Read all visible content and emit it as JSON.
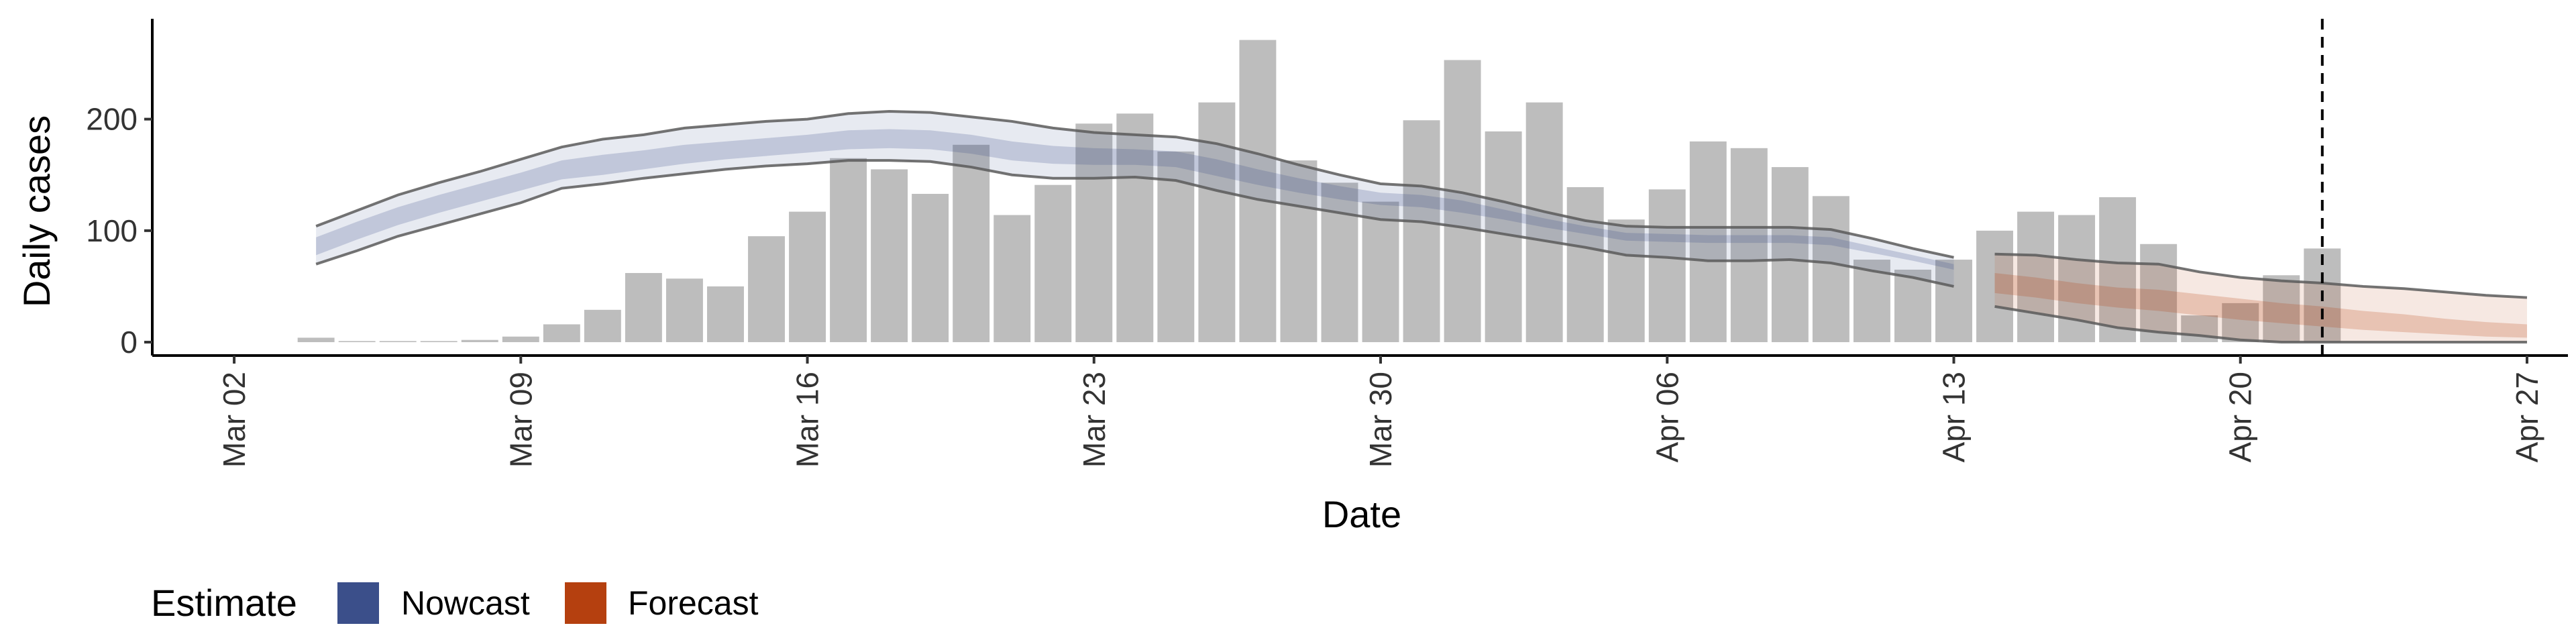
{
  "chart_data": {
    "type": "bar",
    "xlabel": "Date",
    "ylabel": "Daily cases",
    "ylim": [
      -12,
      290
    ],
    "y_ticks": [
      0,
      100,
      200
    ],
    "x_range": [
      "2020-02-29",
      "2020-04-28"
    ],
    "x_ticks": [
      {
        "date": "2020-03-02",
        "label": "Mar 02"
      },
      {
        "date": "2020-03-09",
        "label": "Mar 09"
      },
      {
        "date": "2020-03-16",
        "label": "Mar 16"
      },
      {
        "date": "2020-03-23",
        "label": "Mar 23"
      },
      {
        "date": "2020-03-30",
        "label": "Mar 30"
      },
      {
        "date": "2020-04-06",
        "label": "Apr 06"
      },
      {
        "date": "2020-04-13",
        "label": "Apr 13"
      },
      {
        "date": "2020-04-20",
        "label": "Apr 20"
      },
      {
        "date": "2020-04-27",
        "label": "Apr 27"
      }
    ],
    "grid": false,
    "bar_color": "#bdbdbd",
    "cases": {
      "start_date": "2020-03-04",
      "values": [
        4,
        1,
        1,
        1,
        2,
        5,
        16,
        29,
        62,
        57,
        50,
        95,
        117,
        165,
        155,
        133,
        177,
        114,
        141,
        196,
        205,
        171,
        215,
        271,
        163,
        143,
        126,
        199,
        253,
        189,
        215,
        139,
        110,
        137,
        180,
        174,
        157,
        131,
        74,
        65,
        74,
        100,
        117,
        114,
        130,
        88,
        24,
        35,
        60,
        84
      ]
    },
    "reference_line_date": "2020-04-22",
    "legend": {
      "title": "Estimate",
      "position": "bottom-left",
      "entries": [
        {
          "label": "Nowcast",
          "color": "#3b4f8a"
        },
        {
          "label": "Forecast",
          "color": "#b5400f"
        }
      ]
    },
    "estimates": [
      {
        "name": "Nowcast",
        "color": "#3b4f8a",
        "dates": [
          "2020-03-04",
          "2020-03-05",
          "2020-03-06",
          "2020-03-07",
          "2020-03-08",
          "2020-03-09",
          "2020-03-10",
          "2020-03-11",
          "2020-03-12",
          "2020-03-13",
          "2020-03-14",
          "2020-03-15",
          "2020-03-16",
          "2020-03-17",
          "2020-03-18",
          "2020-03-19",
          "2020-03-20",
          "2020-03-21",
          "2020-03-22",
          "2020-03-23",
          "2020-03-24",
          "2020-03-25",
          "2020-03-26",
          "2020-03-27",
          "2020-03-28",
          "2020-03-29",
          "2020-03-30",
          "2020-03-31",
          "2020-04-01",
          "2020-04-02",
          "2020-04-03",
          "2020-04-04",
          "2020-04-05",
          "2020-04-06",
          "2020-04-07",
          "2020-04-08",
          "2020-04-09",
          "2020-04-10",
          "2020-04-11",
          "2020-04-12",
          "2020-04-13"
        ],
        "lower_90": [
          70,
          82,
          95,
          105,
          115,
          125,
          138,
          142,
          147,
          151,
          155,
          158,
          160,
          163,
          163,
          162,
          157,
          150,
          147,
          147,
          148,
          145,
          136,
          128,
          122,
          116,
          110,
          108,
          103,
          97,
          91,
          85,
          78,
          76,
          73,
          73,
          74,
          71,
          64,
          58,
          50
        ],
        "upper_90": [
          104,
          118,
          132,
          143,
          153,
          164,
          175,
          182,
          186,
          192,
          195,
          198,
          200,
          205,
          207,
          206,
          202,
          198,
          192,
          188,
          186,
          184,
          178,
          169,
          159,
          150,
          142,
          140,
          134,
          126,
          117,
          109,
          104,
          103,
          103,
          103,
          103,
          101,
          93,
          84,
          76
        ],
        "lower_50": [
          78,
          92,
          105,
          116,
          126,
          136,
          146,
          150,
          155,
          160,
          164,
          167,
          170,
          173,
          174,
          173,
          169,
          163,
          160,
          159,
          159,
          157,
          149,
          141,
          134,
          128,
          123,
          121,
          116,
          110,
          103,
          97,
          91,
          90,
          89,
          89,
          89,
          87,
          80,
          73,
          65
        ],
        "upper_50": [
          94,
          108,
          121,
          132,
          142,
          152,
          163,
          168,
          172,
          177,
          180,
          183,
          186,
          190,
          191,
          190,
          186,
          180,
          176,
          174,
          173,
          171,
          164,
          155,
          147,
          140,
          134,
          132,
          127,
          119,
          111,
          104,
          98,
          97,
          96,
          96,
          96,
          94,
          86,
          78,
          70
        ]
      },
      {
        "name": "Forecast",
        "color": "#b5400f",
        "dates": [
          "2020-04-14",
          "2020-04-15",
          "2020-04-16",
          "2020-04-17",
          "2020-04-18",
          "2020-04-19",
          "2020-04-20",
          "2020-04-21",
          "2020-04-22",
          "2020-04-23",
          "2020-04-24",
          "2020-04-25",
          "2020-04-26",
          "2020-04-27"
        ],
        "lower_90": [
          32,
          26,
          20,
          13,
          9,
          6,
          2,
          0,
          0,
          0,
          0,
          0,
          0,
          0
        ],
        "upper_90": [
          79,
          78,
          74,
          71,
          70,
          63,
          58,
          55,
          53,
          50,
          48,
          45,
          42,
          40
        ],
        "lower_50": [
          44,
          40,
          35,
          31,
          28,
          24,
          20,
          17,
          14,
          11,
          9,
          7,
          5,
          4
        ],
        "upper_50": [
          62,
          58,
          53,
          49,
          47,
          43,
          39,
          35,
          32,
          28,
          25,
          21,
          18,
          16
        ]
      }
    ]
  }
}
